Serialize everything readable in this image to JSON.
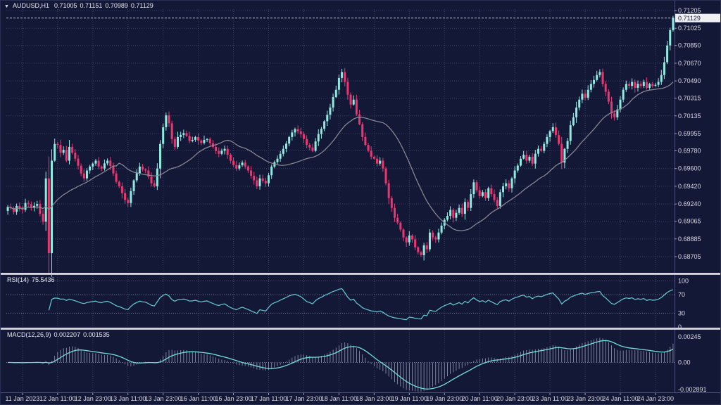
{
  "window": {
    "dropdown_icon": "▼",
    "symbol": "AUDUSD,H1",
    "open": "0.71005",
    "high": "0.71151",
    "low": "0.70989",
    "close": "0.71129"
  },
  "colors": {
    "background": "#141837",
    "grid": "#3e4570",
    "bull": "#8feadf",
    "bear": "#ed3670",
    "ma_line": "#8e8e96",
    "rsi_line": "#66cbd4",
    "macd_signal": "#74dfd8",
    "macd_histogram": "#aeb4cc",
    "axis_text": "#d8d9e2",
    "price_box_bg": "#efeff4",
    "price_box_text": "#141837",
    "separator": "#c9c9d4",
    "level_line": "#9fa3b8",
    "bid_line": "#c6c8d4",
    "border": "#4a5078"
  },
  "chart_data": {
    "type": "candlestick",
    "symbol": "AUDUSD",
    "timeframe": "H1",
    "current_price": 0.71129,
    "last_candle": {
      "open": 0.71005,
      "high": 0.71151,
      "low": 0.70989,
      "close": 0.71129
    },
    "chart_low": 0.68705,
    "price_ticks": [
      0.71205,
      0.71025,
      0.7085,
      0.7067,
      0.7049,
      0.70315,
      0.70135,
      0.69955,
      0.6978,
      0.696,
      0.6942,
      0.6924,
      0.69065,
      0.68885,
      0.68705
    ],
    "time_ticks": [
      "11 Jan 2023",
      "12 Jan 11:00",
      "12 Jan 23:00",
      "13 Jan 11:00",
      "13 Jan 23:00",
      "16 Jan 11:00",
      "16 Jan 23:00",
      "17 Jan 11:00",
      "17 Jan 23:00",
      "18 Jan 11:00",
      "18 Jan 23:00",
      "19 Jan 11:00",
      "19 Jan 23:00",
      "20 Jan 11:00",
      "20 Jan 23:00",
      "23 Jan 11:00",
      "23 Jan 23:00",
      "24 Jan 11:00",
      "24 Jan 23:00"
    ],
    "candle_count": 228,
    "ma_period": 24,
    "close_waypoints": [
      [
        0,
        0.6921
      ],
      [
        2,
        0.6916
      ],
      [
        3,
        0.6922
      ],
      [
        5,
        0.6918
      ],
      [
        6,
        0.6925
      ],
      [
        8,
        0.692
      ],
      [
        10,
        0.6924
      ],
      [
        11,
        0.6914
      ],
      [
        12,
        0.6906
      ],
      [
        13,
        0.695
      ],
      [
        14,
        0.6874
      ],
      [
        15,
        0.6968
      ],
      [
        16,
        0.6985
      ],
      [
        17,
        0.6984
      ],
      [
        18,
        0.6976
      ],
      [
        19,
        0.6979
      ],
      [
        20,
        0.6968
      ],
      [
        21,
        0.6982
      ],
      [
        22,
        0.6976
      ],
      [
        23,
        0.697
      ],
      [
        25,
        0.6955
      ],
      [
        26,
        0.695
      ],
      [
        28,
        0.6962
      ],
      [
        30,
        0.6968
      ],
      [
        32,
        0.696
      ],
      [
        34,
        0.6968
      ],
      [
        36,
        0.6955
      ],
      [
        38,
        0.6942
      ],
      [
        40,
        0.6928
      ],
      [
        41,
        0.6925
      ],
      [
        43,
        0.6948
      ],
      [
        45,
        0.6962
      ],
      [
        47,
        0.6958
      ],
      [
        49,
        0.6945
      ],
      [
        50,
        0.6942
      ],
      [
        51,
        0.696
      ],
      [
        52,
        0.6985
      ],
      [
        53,
        0.7002
      ],
      [
        54,
        0.7014
      ],
      [
        55,
        0.7006
      ],
      [
        56,
        0.699
      ],
      [
        57,
        0.6982
      ],
      [
        58,
        0.6992
      ],
      [
        60,
        0.6996
      ],
      [
        62,
        0.6988
      ],
      [
        64,
        0.6992
      ],
      [
        66,
        0.6986
      ],
      [
        68,
        0.699
      ],
      [
        70,
        0.6982
      ],
      [
        72,
        0.6975
      ],
      [
        74,
        0.698
      ],
      [
        76,
        0.6968
      ],
      [
        78,
        0.696
      ],
      [
        80,
        0.6966
      ],
      [
        82,
        0.6958
      ],
      [
        84,
        0.6948
      ],
      [
        85,
        0.6942
      ],
      [
        86,
        0.695
      ],
      [
        88,
        0.6945
      ],
      [
        90,
        0.6962
      ],
      [
        92,
        0.697
      ],
      [
        94,
        0.698
      ],
      [
        96,
        0.6992
      ],
      [
        98,
        0.7
      ],
      [
        100,
        0.6995
      ],
      [
        101,
        0.699
      ],
      [
        102,
        0.6984
      ],
      [
        104,
        0.6978
      ],
      [
        106,
        0.6995
      ],
      [
        108,
        0.7008
      ],
      [
        110,
        0.7022
      ],
      [
        112,
        0.704
      ],
      [
        113,
        0.7052
      ],
      [
        114,
        0.7058
      ],
      [
        115,
        0.7048
      ],
      [
        116,
        0.7035
      ],
      [
        117,
        0.7025
      ],
      [
        118,
        0.703
      ],
      [
        119,
        0.7015
      ],
      [
        120,
        0.7005
      ],
      [
        121,
        0.6992
      ],
      [
        122,
        0.6984
      ],
      [
        123,
        0.6978
      ],
      [
        124,
        0.6972
      ],
      [
        125,
        0.697
      ],
      [
        126,
        0.6965
      ],
      [
        127,
        0.6968
      ],
      [
        128,
        0.696
      ],
      [
        129,
        0.6945
      ],
      [
        130,
        0.693
      ],
      [
        131,
        0.692
      ],
      [
        132,
        0.691
      ],
      [
        133,
        0.6905
      ],
      [
        134,
        0.6898
      ],
      [
        135,
        0.689
      ],
      [
        136,
        0.6885
      ],
      [
        137,
        0.6892
      ],
      [
        138,
        0.6888
      ],
      [
        139,
        0.688
      ],
      [
        140,
        0.6875
      ],
      [
        141,
        0.6872
      ],
      [
        142,
        0.6882
      ],
      [
        143,
        0.6878
      ],
      [
        144,
        0.6895
      ],
      [
        145,
        0.689
      ],
      [
        146,
        0.6888
      ],
      [
        147,
        0.6895
      ],
      [
        148,
        0.6902
      ],
      [
        149,
        0.6908
      ],
      [
        150,
        0.6912
      ],
      [
        151,
        0.6918
      ],
      [
        152,
        0.691
      ],
      [
        153,
        0.6915
      ],
      [
        154,
        0.692
      ],
      [
        155,
        0.6914
      ],
      [
        156,
        0.6926
      ],
      [
        157,
        0.692
      ],
      [
        158,
        0.6934
      ],
      [
        159,
        0.6946
      ],
      [
        160,
        0.6938
      ],
      [
        161,
        0.6932
      ],
      [
        162,
        0.6936
      ],
      [
        163,
        0.693
      ],
      [
        164,
        0.694
      ],
      [
        165,
        0.6934
      ],
      [
        166,
        0.6928
      ],
      [
        167,
        0.6922
      ],
      [
        168,
        0.6936
      ],
      [
        169,
        0.6942
      ],
      [
        170,
        0.6945
      ],
      [
        171,
        0.694
      ],
      [
        172,
        0.695
      ],
      [
        173,
        0.6958
      ],
      [
        174,
        0.6963
      ],
      [
        175,
        0.697
      ],
      [
        176,
        0.6974
      ],
      [
        177,
        0.6968
      ],
      [
        178,
        0.6972
      ],
      [
        179,
        0.6965
      ],
      [
        180,
        0.6975
      ],
      [
        181,
        0.698
      ],
      [
        182,
        0.6978
      ],
      [
        183,
        0.6985
      ],
      [
        184,
        0.6992
      ],
      [
        185,
        0.6998
      ],
      [
        186,
        0.7002
      ],
      [
        187,
        0.6994
      ],
      [
        188,
        0.6985
      ],
      [
        189,
        0.6966
      ],
      [
        190,
        0.698
      ],
      [
        191,
        0.6988
      ],
      [
        192,
        0.7004
      ],
      [
        193,
        0.7012
      ],
      [
        194,
        0.7022
      ],
      [
        195,
        0.703
      ],
      [
        196,
        0.7036
      ],
      [
        197,
        0.7032
      ],
      [
        198,
        0.704
      ],
      [
        199,
        0.7046
      ],
      [
        200,
        0.705
      ],
      [
        201,
        0.7055
      ],
      [
        202,
        0.7058
      ],
      [
        203,
        0.7046
      ],
      [
        204,
        0.7038
      ],
      [
        205,
        0.7028
      ],
      [
        206,
        0.7016
      ],
      [
        207,
        0.7012
      ],
      [
        208,
        0.702
      ],
      [
        209,
        0.703
      ],
      [
        210,
        0.704
      ],
      [
        211,
        0.7046
      ],
      [
        212,
        0.7044
      ],
      [
        213,
        0.7048
      ],
      [
        214,
        0.7042
      ],
      [
        215,
        0.7046
      ],
      [
        216,
        0.7044
      ],
      [
        217,
        0.7048
      ],
      [
        218,
        0.7042
      ],
      [
        219,
        0.7046
      ],
      [
        220,
        0.7044
      ],
      [
        221,
        0.7045
      ],
      [
        222,
        0.7048
      ],
      [
        223,
        0.7055
      ],
      [
        224,
        0.7068
      ],
      [
        225,
        0.7085
      ],
      [
        226,
        0.71005
      ],
      [
        227,
        0.71129
      ]
    ],
    "indicators": {
      "rsi": {
        "label": "RSI(14)",
        "value": "75.5436",
        "period": 14,
        "levels": [
          100,
          70,
          30,
          0
        ]
      },
      "macd": {
        "label": "MACD(12,26,9)",
        "fast": 12,
        "slow": 26,
        "signal": 9,
        "main_value": "0.002207",
        "signal_value": "0.001535",
        "axis_ticks": [
          "0.00245",
          "0.00",
          "-0.002891"
        ]
      }
    }
  }
}
